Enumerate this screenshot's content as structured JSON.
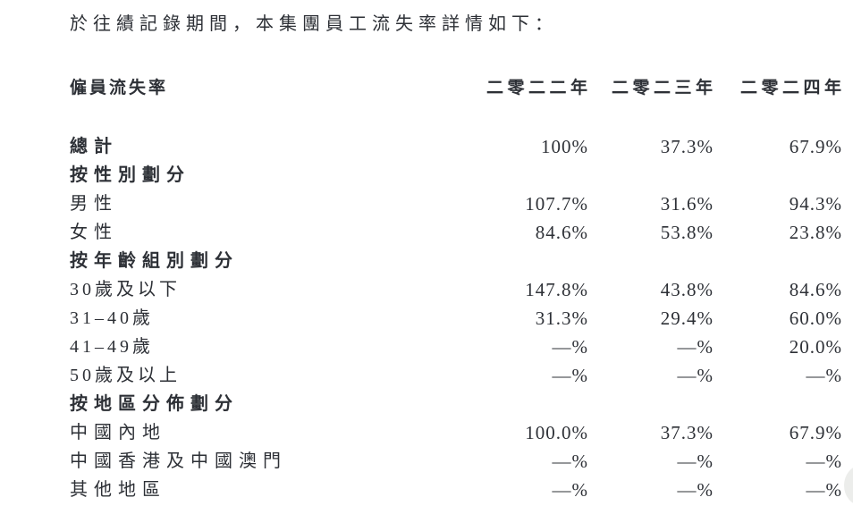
{
  "intro": "於往績記錄期間，本集團員工流失率詳情如下：",
  "table": {
    "title": "僱員流失率",
    "year_headers": [
      "二零二二年",
      "二零二三年",
      "二零二四年"
    ],
    "rows": [
      {
        "label": "總計",
        "bold": true,
        "values": [
          "100%",
          "37.3%",
          "67.9%"
        ]
      },
      {
        "label": "按性別劃分",
        "bold": true,
        "values": [
          "",
          "",
          ""
        ]
      },
      {
        "label": "男性",
        "bold": false,
        "values": [
          "107.7%",
          "31.6%",
          "94.3%"
        ]
      },
      {
        "label": "女性",
        "bold": false,
        "values": [
          "84.6%",
          "53.8%",
          "23.8%"
        ]
      },
      {
        "label": "按年齡組別劃分",
        "bold": true,
        "values": [
          "",
          "",
          ""
        ]
      },
      {
        "label": "30歲及以下",
        "bold": false,
        "values": [
          "147.8%",
          "43.8%",
          "84.6%"
        ]
      },
      {
        "label": "31–40歲",
        "bold": false,
        "values": [
          "31.3%",
          "29.4%",
          "60.0%"
        ]
      },
      {
        "label": "41–49歲",
        "bold": false,
        "values": [
          "—%",
          "—%",
          "20.0%"
        ]
      },
      {
        "label": "50歲及以上",
        "bold": false,
        "values": [
          "—%",
          "—%",
          "—%"
        ]
      },
      {
        "label": "按地區分佈劃分",
        "bold": true,
        "values": [
          "",
          "",
          ""
        ]
      },
      {
        "label": "中國內地",
        "bold": false,
        "values": [
          "100.0%",
          "37.3%",
          "67.9%"
        ]
      },
      {
        "label": "中國香港及中國澳門",
        "bold": false,
        "values": [
          "—%",
          "—%",
          "—%"
        ]
      },
      {
        "label": "其他地區",
        "bold": false,
        "values": [
          "—%",
          "—%",
          "—%"
        ]
      }
    ]
  },
  "colors": {
    "text": "#2d3036",
    "background": "#ffffff",
    "scroll_hint": "#ecedeb"
  }
}
